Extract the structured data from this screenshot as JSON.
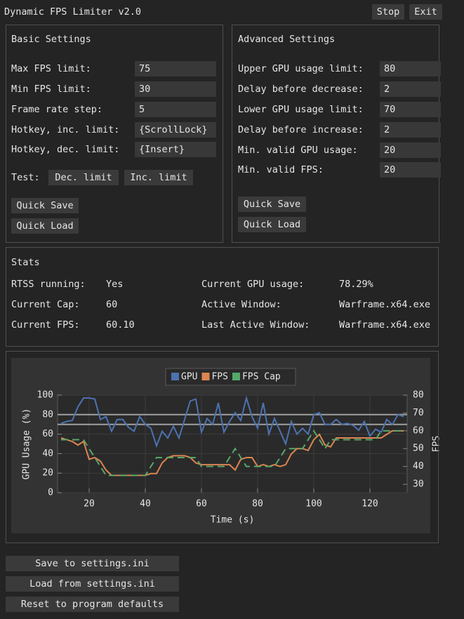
{
  "header": {
    "title": "Dynamic FPS Limiter v2.0",
    "buttons": [
      "Stop",
      "Exit"
    ]
  },
  "basic_settings": {
    "title": "Basic Settings",
    "fields": [
      {
        "label": "Max FPS limit:",
        "value": "75"
      },
      {
        "label": "Min FPS limit:",
        "value": "30"
      },
      {
        "label": "Frame rate step:",
        "value": "5"
      },
      {
        "label": "Hotkey, inc. limit:",
        "value": "{ScrollLock}"
      },
      {
        "label": "Hotkey, dec. limit:",
        "value": "{Insert}"
      }
    ],
    "test_label": "Test:",
    "test_buttons": [
      "Dec. limit",
      "Inc. limit"
    ],
    "buttons": [
      "Quick Save",
      "Quick Load"
    ]
  },
  "advanced_settings": {
    "title": "Advanced Settings",
    "fields": [
      {
        "label": "Upper GPU usage limit:",
        "value": "80"
      },
      {
        "label": "Delay before decrease:",
        "value": "2"
      },
      {
        "label": "Lower GPU usage limit:",
        "value": "70"
      },
      {
        "label": "Delay before increase:",
        "value": "2"
      },
      {
        "label": "Min. valid GPU usage:",
        "value": "20"
      },
      {
        "label": "Min. valid FPS:",
        "value": "20"
      }
    ],
    "buttons": [
      "Quick Save",
      "Quick Load"
    ]
  },
  "stats": {
    "title": "Stats",
    "rows": [
      [
        "RTSS running:",
        "Yes",
        "Current GPU usage:",
        "78.29%"
      ],
      [
        "Current Cap:",
        "60",
        "Active Window:",
        "Warframe.x64.exe"
      ],
      [
        "Current FPS:",
        "60.10",
        "Last Active Window:",
        "Warframe.x64.exe"
      ]
    ]
  },
  "chart_data": {
    "type": "line",
    "xlabel": "Time (s)",
    "ylabel": "GPU Usage (%)",
    "y2label": "FPS",
    "x": [
      10,
      12,
      14,
      16,
      18,
      20,
      22,
      24,
      26,
      28,
      30,
      32,
      34,
      36,
      38,
      40,
      42,
      44,
      46,
      48,
      50,
      52,
      54,
      56,
      58,
      60,
      62,
      64,
      66,
      68,
      70,
      72,
      74,
      76,
      78,
      80,
      82,
      84,
      86,
      88,
      90,
      92,
      94,
      96,
      98,
      100,
      102,
      104,
      106,
      108,
      110,
      112,
      114,
      116,
      118,
      120,
      122,
      124,
      126,
      128,
      130,
      132
    ],
    "series": [
      {
        "name": "GPU",
        "color": "#4c72b0",
        "values": [
          71,
          73,
          74,
          88,
          97,
          97,
          96,
          75,
          78,
          63,
          75,
          75,
          67,
          63,
          78,
          70,
          66,
          48,
          63,
          56,
          68,
          56,
          75,
          94,
          96,
          62,
          76,
          70,
          92,
          62,
          73,
          82,
          74,
          97,
          78,
          66,
          92,
          60,
          76,
          63,
          50,
          73,
          60,
          66,
          60,
          80,
          82,
          70,
          70,
          75,
          70,
          71,
          69,
          64,
          73,
          58,
          65,
          62,
          75,
          70,
          80,
          78
        ]
      },
      {
        "name": "FPS",
        "color": "#dd8452",
        "axis": "y2",
        "values": [
          56,
          55,
          54,
          52,
          54,
          44,
          45,
          43,
          38,
          35,
          35,
          35,
          35,
          35,
          35,
          35,
          36,
          36,
          42,
          45,
          46,
          46,
          46,
          45,
          42,
          41,
          41,
          41,
          41,
          41,
          41,
          38,
          44,
          45,
          45,
          40,
          41,
          40,
          41,
          40,
          41,
          47,
          50,
          50,
          49,
          55,
          58,
          52,
          51,
          56,
          56,
          56,
          56,
          56,
          56,
          56,
          56,
          56,
          58,
          60,
          60,
          60
        ]
      },
      {
        "name": "FPS Cap",
        "color": "#55a868",
        "axis": "y2",
        "style": "dashed",
        "values": [
          55,
          55,
          55,
          55,
          55,
          50,
          45,
          40,
          35,
          35,
          35,
          35,
          35,
          35,
          35,
          35,
          40,
          45,
          45,
          45,
          45,
          45,
          45,
          45,
          45,
          40,
          40,
          40,
          40,
          40,
          45,
          50,
          45,
          40,
          40,
          40,
          40,
          40,
          40,
          45,
          50,
          50,
          50,
          50,
          55,
          60,
          55,
          50,
          55,
          55,
          55,
          55,
          55,
          55,
          55,
          55,
          55,
          60,
          60,
          60,
          60,
          60
        ]
      }
    ],
    "reference_lines": [
      80,
      70
    ],
    "reference_color": "#a0a0a0",
    "xlim": [
      8.75,
      133.25
    ],
    "xticks": [
      20,
      40,
      60,
      80,
      100,
      120
    ],
    "ylim": [
      0,
      100
    ],
    "yticks": [
      0,
      20,
      40,
      60,
      80,
      100
    ],
    "y2lim": [
      25.3,
      80
    ],
    "y2ticks": [
      30,
      40,
      50,
      60,
      70,
      80
    ],
    "grid": true,
    "legend": "top"
  },
  "footer": {
    "buttons": [
      "Save to settings.ini",
      "Load from settings.ini",
      "Reset to program defaults"
    ]
  }
}
